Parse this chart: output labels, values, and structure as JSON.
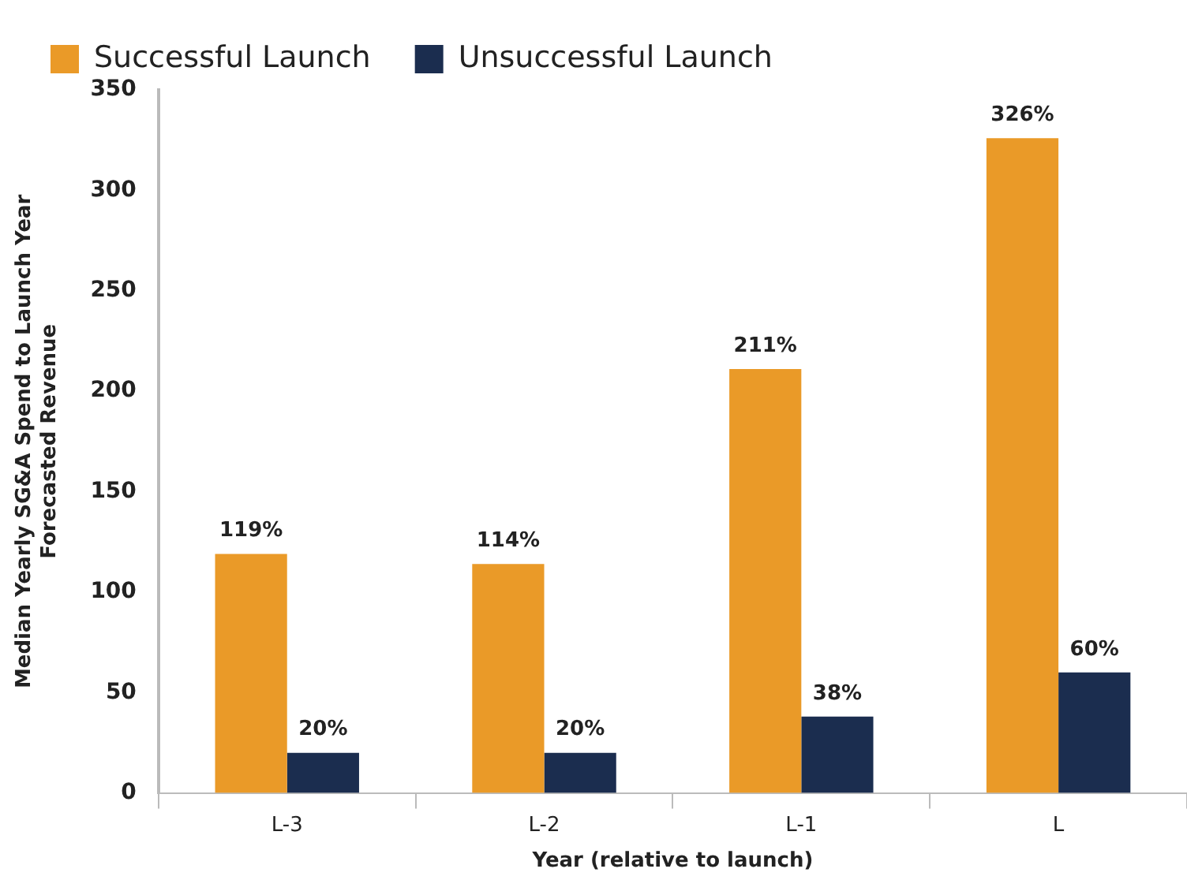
{
  "chart_data": {
    "type": "bar",
    "xlabel": "Year (relative to launch)",
    "ylabel": "Median Yearly SG&A Spend to Launch Year\nForecasted Revenue",
    "categories": [
      "L-3",
      "L-2",
      "L-1",
      "L"
    ],
    "series": [
      {
        "name": "Successful Launch",
        "color": "#ea9a28",
        "values": [
          119,
          114,
          211,
          326
        ],
        "value_labels": [
          "119%",
          "114%",
          "211%",
          "326%"
        ]
      },
      {
        "name": "Unsuccessful Launch",
        "color": "#1b2d4f",
        "values": [
          20,
          20,
          38,
          60
        ],
        "value_labels": [
          "20%",
          "20%",
          "38%",
          "60%"
        ]
      }
    ],
    "ylim": [
      0,
      350
    ],
    "yticks": [
      0,
      50,
      100,
      150,
      200,
      250,
      300,
      350
    ],
    "grid": false,
    "legend": "top left"
  }
}
